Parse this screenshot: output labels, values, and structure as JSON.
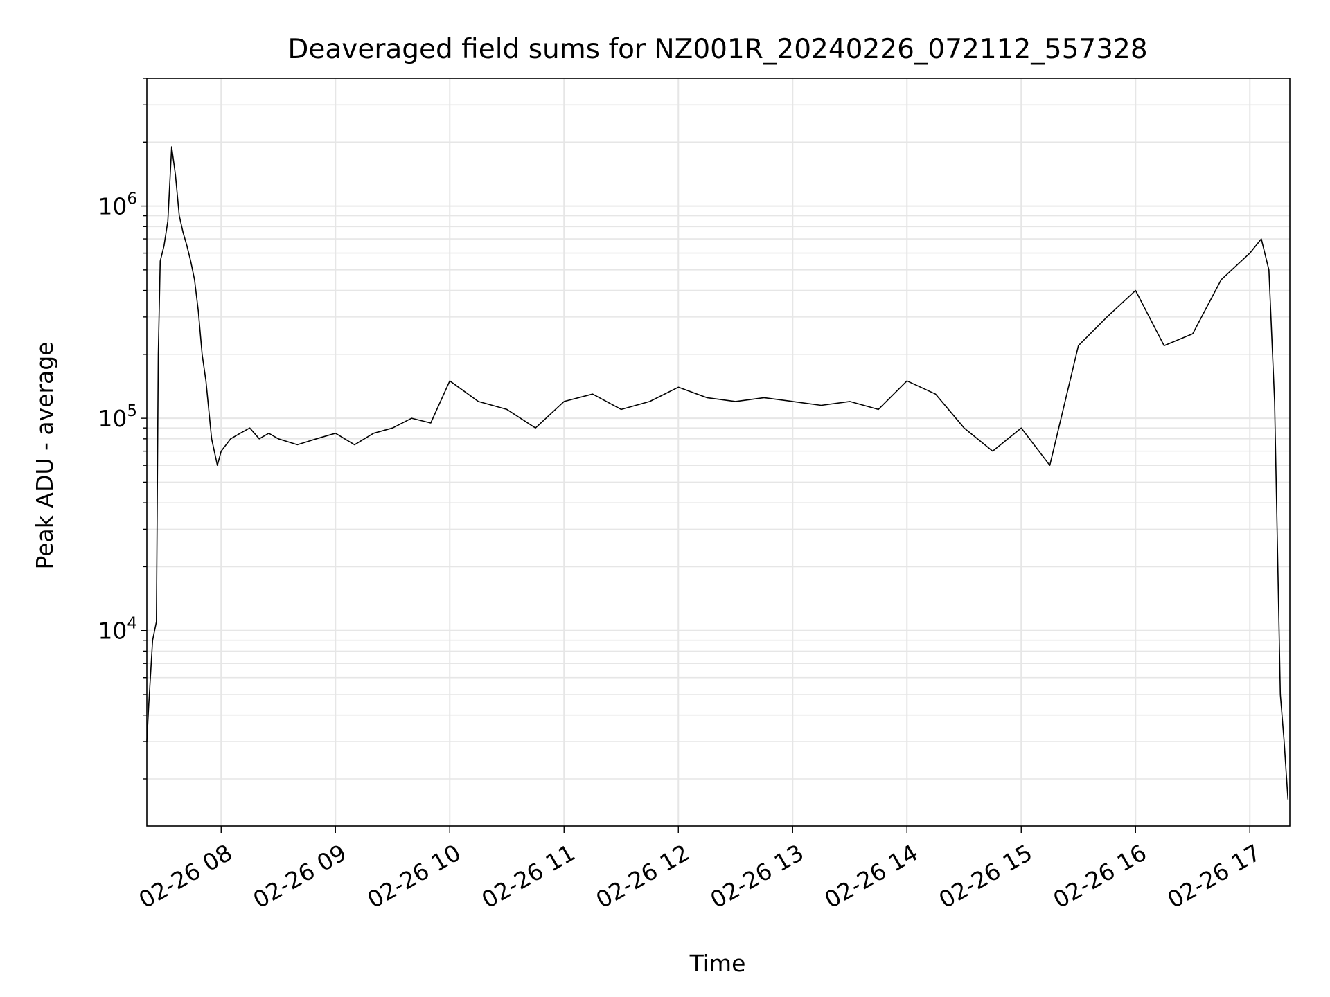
{
  "chart_data": {
    "type": "line",
    "title": "Deaveraged field sums for NZ001R_20240226_072112_557328",
    "xlabel": "Time",
    "ylabel": "Peak ADU - average",
    "yscale": "log",
    "grid": true,
    "legend": "none",
    "line_color": "#000000",
    "grid_color": "#e6e6e6",
    "xlim": [
      "2024-02-26 07:21",
      "2024-02-26 17:21"
    ],
    "ylim": [
      1200,
      4000000
    ],
    "x_ticks": [
      {
        "value": "2024-02-26 08:00",
        "label": "02-26 08"
      },
      {
        "value": "2024-02-26 09:00",
        "label": "02-26 09"
      },
      {
        "value": "2024-02-26 10:00",
        "label": "02-26 10"
      },
      {
        "value": "2024-02-26 11:00",
        "label": "02-26 11"
      },
      {
        "value": "2024-02-26 12:00",
        "label": "02-26 12"
      },
      {
        "value": "2024-02-26 13:00",
        "label": "02-26 13"
      },
      {
        "value": "2024-02-26 14:00",
        "label": "02-26 14"
      },
      {
        "value": "2024-02-26 15:00",
        "label": "02-26 15"
      },
      {
        "value": "2024-02-26 16:00",
        "label": "02-26 16"
      },
      {
        "value": "2024-02-26 17:00",
        "label": "02-26 17"
      }
    ],
    "y_ticks": [
      {
        "value": 10000,
        "base": "10",
        "exp": "4"
      },
      {
        "value": 100000,
        "base": "10",
        "exp": "5"
      },
      {
        "value": 1000000,
        "base": "10",
        "exp": "6"
      }
    ],
    "series": [
      {
        "x": [
          "2024-02-26 07:21",
          "2024-02-26 07:22",
          "2024-02-26 07:24",
          "2024-02-26 07:26",
          "2024-02-26 07:27",
          "2024-02-26 07:28",
          "2024-02-26 07:30",
          "2024-02-26 07:32",
          "2024-02-26 07:34",
          "2024-02-26 07:36",
          "2024-02-26 07:38",
          "2024-02-26 07:40",
          "2024-02-26 07:42",
          "2024-02-26 07:44",
          "2024-02-26 07:46",
          "2024-02-26 07:48",
          "2024-02-26 07:50",
          "2024-02-26 07:52",
          "2024-02-26 07:55",
          "2024-02-26 07:58",
          "2024-02-26 08:00",
          "2024-02-26 08:05",
          "2024-02-26 08:10",
          "2024-02-26 08:15",
          "2024-02-26 08:20",
          "2024-02-26 08:25",
          "2024-02-26 08:30",
          "2024-02-26 08:40",
          "2024-02-26 08:50",
          "2024-02-26 09:00",
          "2024-02-26 09:10",
          "2024-02-26 09:20",
          "2024-02-26 09:30",
          "2024-02-26 09:40",
          "2024-02-26 09:50",
          "2024-02-26 10:00",
          "2024-02-26 10:15",
          "2024-02-26 10:30",
          "2024-02-26 10:45",
          "2024-02-26 11:00",
          "2024-02-26 11:15",
          "2024-02-26 11:30",
          "2024-02-26 11:45",
          "2024-02-26 12:00",
          "2024-02-26 12:15",
          "2024-02-26 12:30",
          "2024-02-26 12:45",
          "2024-02-26 13:00",
          "2024-02-26 13:15",
          "2024-02-26 13:30",
          "2024-02-26 13:45",
          "2024-02-26 14:00",
          "2024-02-26 14:15",
          "2024-02-26 14:30",
          "2024-02-26 14:45",
          "2024-02-26 15:00",
          "2024-02-26 15:15",
          "2024-02-26 15:30",
          "2024-02-26 15:45",
          "2024-02-26 16:00",
          "2024-02-26 16:15",
          "2024-02-26 16:30",
          "2024-02-26 16:45",
          "2024-02-26 17:00",
          "2024-02-26 17:06",
          "2024-02-26 17:10",
          "2024-02-26 17:13",
          "2024-02-26 17:16",
          "2024-02-26 17:18",
          "2024-02-26 17:20"
        ],
        "y": [
          3000,
          4500,
          9000,
          11000,
          200000,
          550000,
          650000,
          850000,
          1900000,
          1400000,
          900000,
          750000,
          650000,
          550000,
          450000,
          320000,
          200000,
          150000,
          80000,
          60000,
          70000,
          80000,
          85000,
          90000,
          80000,
          85000,
          80000,
          75000,
          80000,
          85000,
          75000,
          85000,
          90000,
          100000,
          95000,
          150000,
          120000,
          110000,
          90000,
          120000,
          130000,
          110000,
          120000,
          140000,
          125000,
          120000,
          125000,
          120000,
          115000,
          120000,
          110000,
          150000,
          130000,
          90000,
          70000,
          90000,
          60000,
          220000,
          300000,
          400000,
          220000,
          250000,
          450000,
          600000,
          700000,
          500000,
          120000,
          5000,
          3000,
          1600
        ]
      }
    ]
  }
}
